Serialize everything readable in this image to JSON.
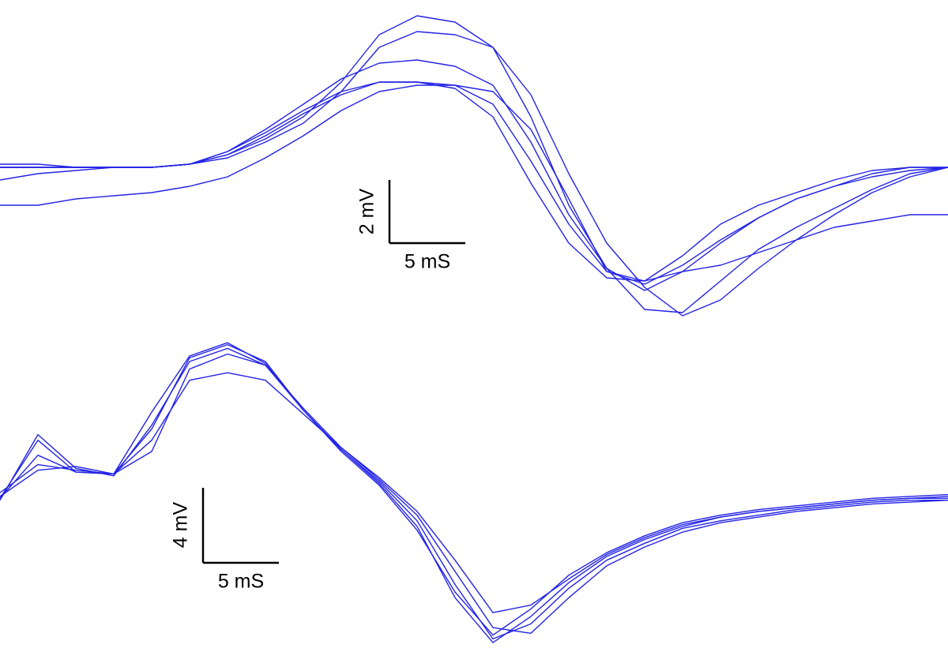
{
  "chart_data": [
    {
      "type": "line",
      "color": "#2323e6",
      "x": [
        0,
        2.5,
        5,
        7.5,
        10,
        12.5,
        15,
        17.5,
        20,
        22.5,
        25,
        27.5,
        30,
        32.5,
        35,
        37.5,
        40,
        42.5,
        45,
        47.5,
        50,
        52.5,
        55,
        57.5,
        60,
        62.5
      ],
      "xlim": [
        0,
        62.5
      ],
      "ylim": [
        -5.2,
        5.3
      ],
      "series": [
        {
          "values": [
            0,
            0,
            0,
            0,
            0,
            0.1,
            0.4,
            0.9,
            1.6,
            2.7,
            4.2,
            4.8,
            4.6,
            3.8,
            1.6,
            -1.2,
            -3.2,
            -4.5,
            -4.6,
            -3.6,
            -2.6,
            -1.9,
            -1.3,
            -0.7,
            -0.2,
            0
          ]
        },
        {
          "values": [
            0,
            0,
            0,
            0,
            0,
            0.1,
            0.5,
            1.1,
            1.8,
            2.4,
            2.7,
            2.7,
            2.6,
            2.0,
            0.2,
            -1.8,
            -3.3,
            -3.7,
            -3.1,
            -2.3,
            -1.6,
            -1.0,
            -0.6,
            -0.2,
            0,
            0
          ]
        },
        {
          "values": [
            0.1,
            0.1,
            0,
            0,
            0,
            0.1,
            0.4,
            1.0,
            1.7,
            2.3,
            2.7,
            2.7,
            2.5,
            1.6,
            -0.5,
            -2.4,
            -3.5,
            -3.6,
            -2.8,
            -1.8,
            -1.2,
            -0.8,
            -0.4,
            -0.1,
            0,
            0
          ]
        },
        {
          "values": [
            0,
            0,
            0,
            0,
            0,
            0.1,
            0.3,
            0.8,
            1.4,
            2.4,
            3.8,
            4.3,
            4.2,
            3.8,
            2.3,
            -0.2,
            -2.4,
            -3.8,
            -4.7,
            -4.2,
            -3.2,
            -2.3,
            -1.5,
            -0.8,
            -0.3,
            0
          ]
        },
        {
          "values": [
            -1.2,
            -1.2,
            -1.0,
            -0.9,
            -0.8,
            -0.6,
            -0.3,
            0.3,
            1.0,
            1.8,
            2.4,
            2.6,
            2.6,
            2.4,
            1.2,
            -1.0,
            -3.3,
            -3.6,
            -3.3,
            -3.1,
            -2.7,
            -2.3,
            -1.9,
            -1.7,
            -1.5,
            -1.5
          ]
        },
        {
          "values": [
            -0.4,
            -0.2,
            -0.1,
            0,
            0,
            0.1,
            0.5,
            1.2,
            2.0,
            2.8,
            3.3,
            3.4,
            3.2,
            2.6,
            0.8,
            -1.5,
            -3.2,
            -3.9,
            -3.3,
            -2.4,
            -1.6,
            -1.0,
            -0.6,
            -0.3,
            -0.1,
            0
          ]
        }
      ],
      "scale_bar": {
        "y": {
          "value": 2,
          "label": "2 mV"
        },
        "x": {
          "value": 5,
          "label": "5 mS"
        }
      }
    },
    {
      "type": "line",
      "color": "#2323e6",
      "x": [
        0,
        2.5,
        5,
        7.5,
        10,
        12.5,
        15,
        17.5,
        20,
        22.5,
        25,
        27.5,
        30,
        32.5,
        35,
        37.5,
        40,
        42.5,
        45,
        47.5,
        50,
        52.5,
        55,
        57.5,
        60,
        62.5
      ],
      "xlim": [
        0,
        62.5
      ],
      "ylim": [
        -10.3,
        7.6
      ],
      "series": [
        {
          "values": [
            -1.3,
            1.8,
            0.1,
            0,
            3.3,
            6.3,
            7.0,
            5.9,
            3.4,
            1.3,
            -0.4,
            -2.5,
            -5.9,
            -8.8,
            -8.0,
            -6.1,
            -4.6,
            -3.7,
            -2.9,
            -2.5,
            -2.2,
            -1.9,
            -1.7,
            -1.5,
            -1.4,
            -1.4
          ]
        },
        {
          "values": [
            -1.0,
            0.5,
            0.2,
            0,
            1.8,
            5.0,
            5.4,
            5.0,
            3.2,
            1.4,
            -0.2,
            -2.0,
            -4.6,
            -7.4,
            -7.0,
            -5.6,
            -4.3,
            -3.4,
            -2.7,
            -2.3,
            -2.0,
            -1.8,
            -1.6,
            -1.4,
            -1.3,
            -1.3
          ]
        },
        {
          "values": [
            -1.4,
            2.1,
            0.3,
            -0.1,
            2.6,
            6.0,
            6.7,
            5.8,
            3.4,
            1.3,
            -0.5,
            -2.8,
            -6.6,
            -9.0,
            -7.6,
            -5.8,
            -4.4,
            -3.5,
            -2.8,
            -2.3,
            -2.0,
            -1.8,
            -1.6,
            -1.4,
            -1.3,
            -1.2
          ]
        },
        {
          "values": [
            -1.2,
            0.2,
            0.4,
            0,
            1.2,
            5.6,
            6.4,
            5.8,
            3.5,
            1.4,
            -0.3,
            -2.2,
            -5.2,
            -8.2,
            -8.5,
            -6.6,
            -4.9,
            -3.9,
            -3.1,
            -2.6,
            -2.3,
            -2.0,
            -1.8,
            -1.6,
            -1.5,
            -1.4
          ]
        },
        {
          "values": [
            -1.3,
            1.0,
            0.1,
            0,
            2.4,
            6.2,
            6.9,
            6.0,
            3.4,
            1.2,
            -0.6,
            -3.0,
            -6.3,
            -8.6,
            -7.2,
            -5.4,
            -4.2,
            -3.3,
            -2.6,
            -2.2,
            -1.9,
            -1.7,
            -1.5,
            -1.3,
            -1.2,
            -1.1
          ]
        }
      ],
      "scale_bar": {
        "y": {
          "value": 4,
          "label": "4 mV"
        },
        "x": {
          "value": 5,
          "label": "5 mS"
        }
      }
    }
  ]
}
